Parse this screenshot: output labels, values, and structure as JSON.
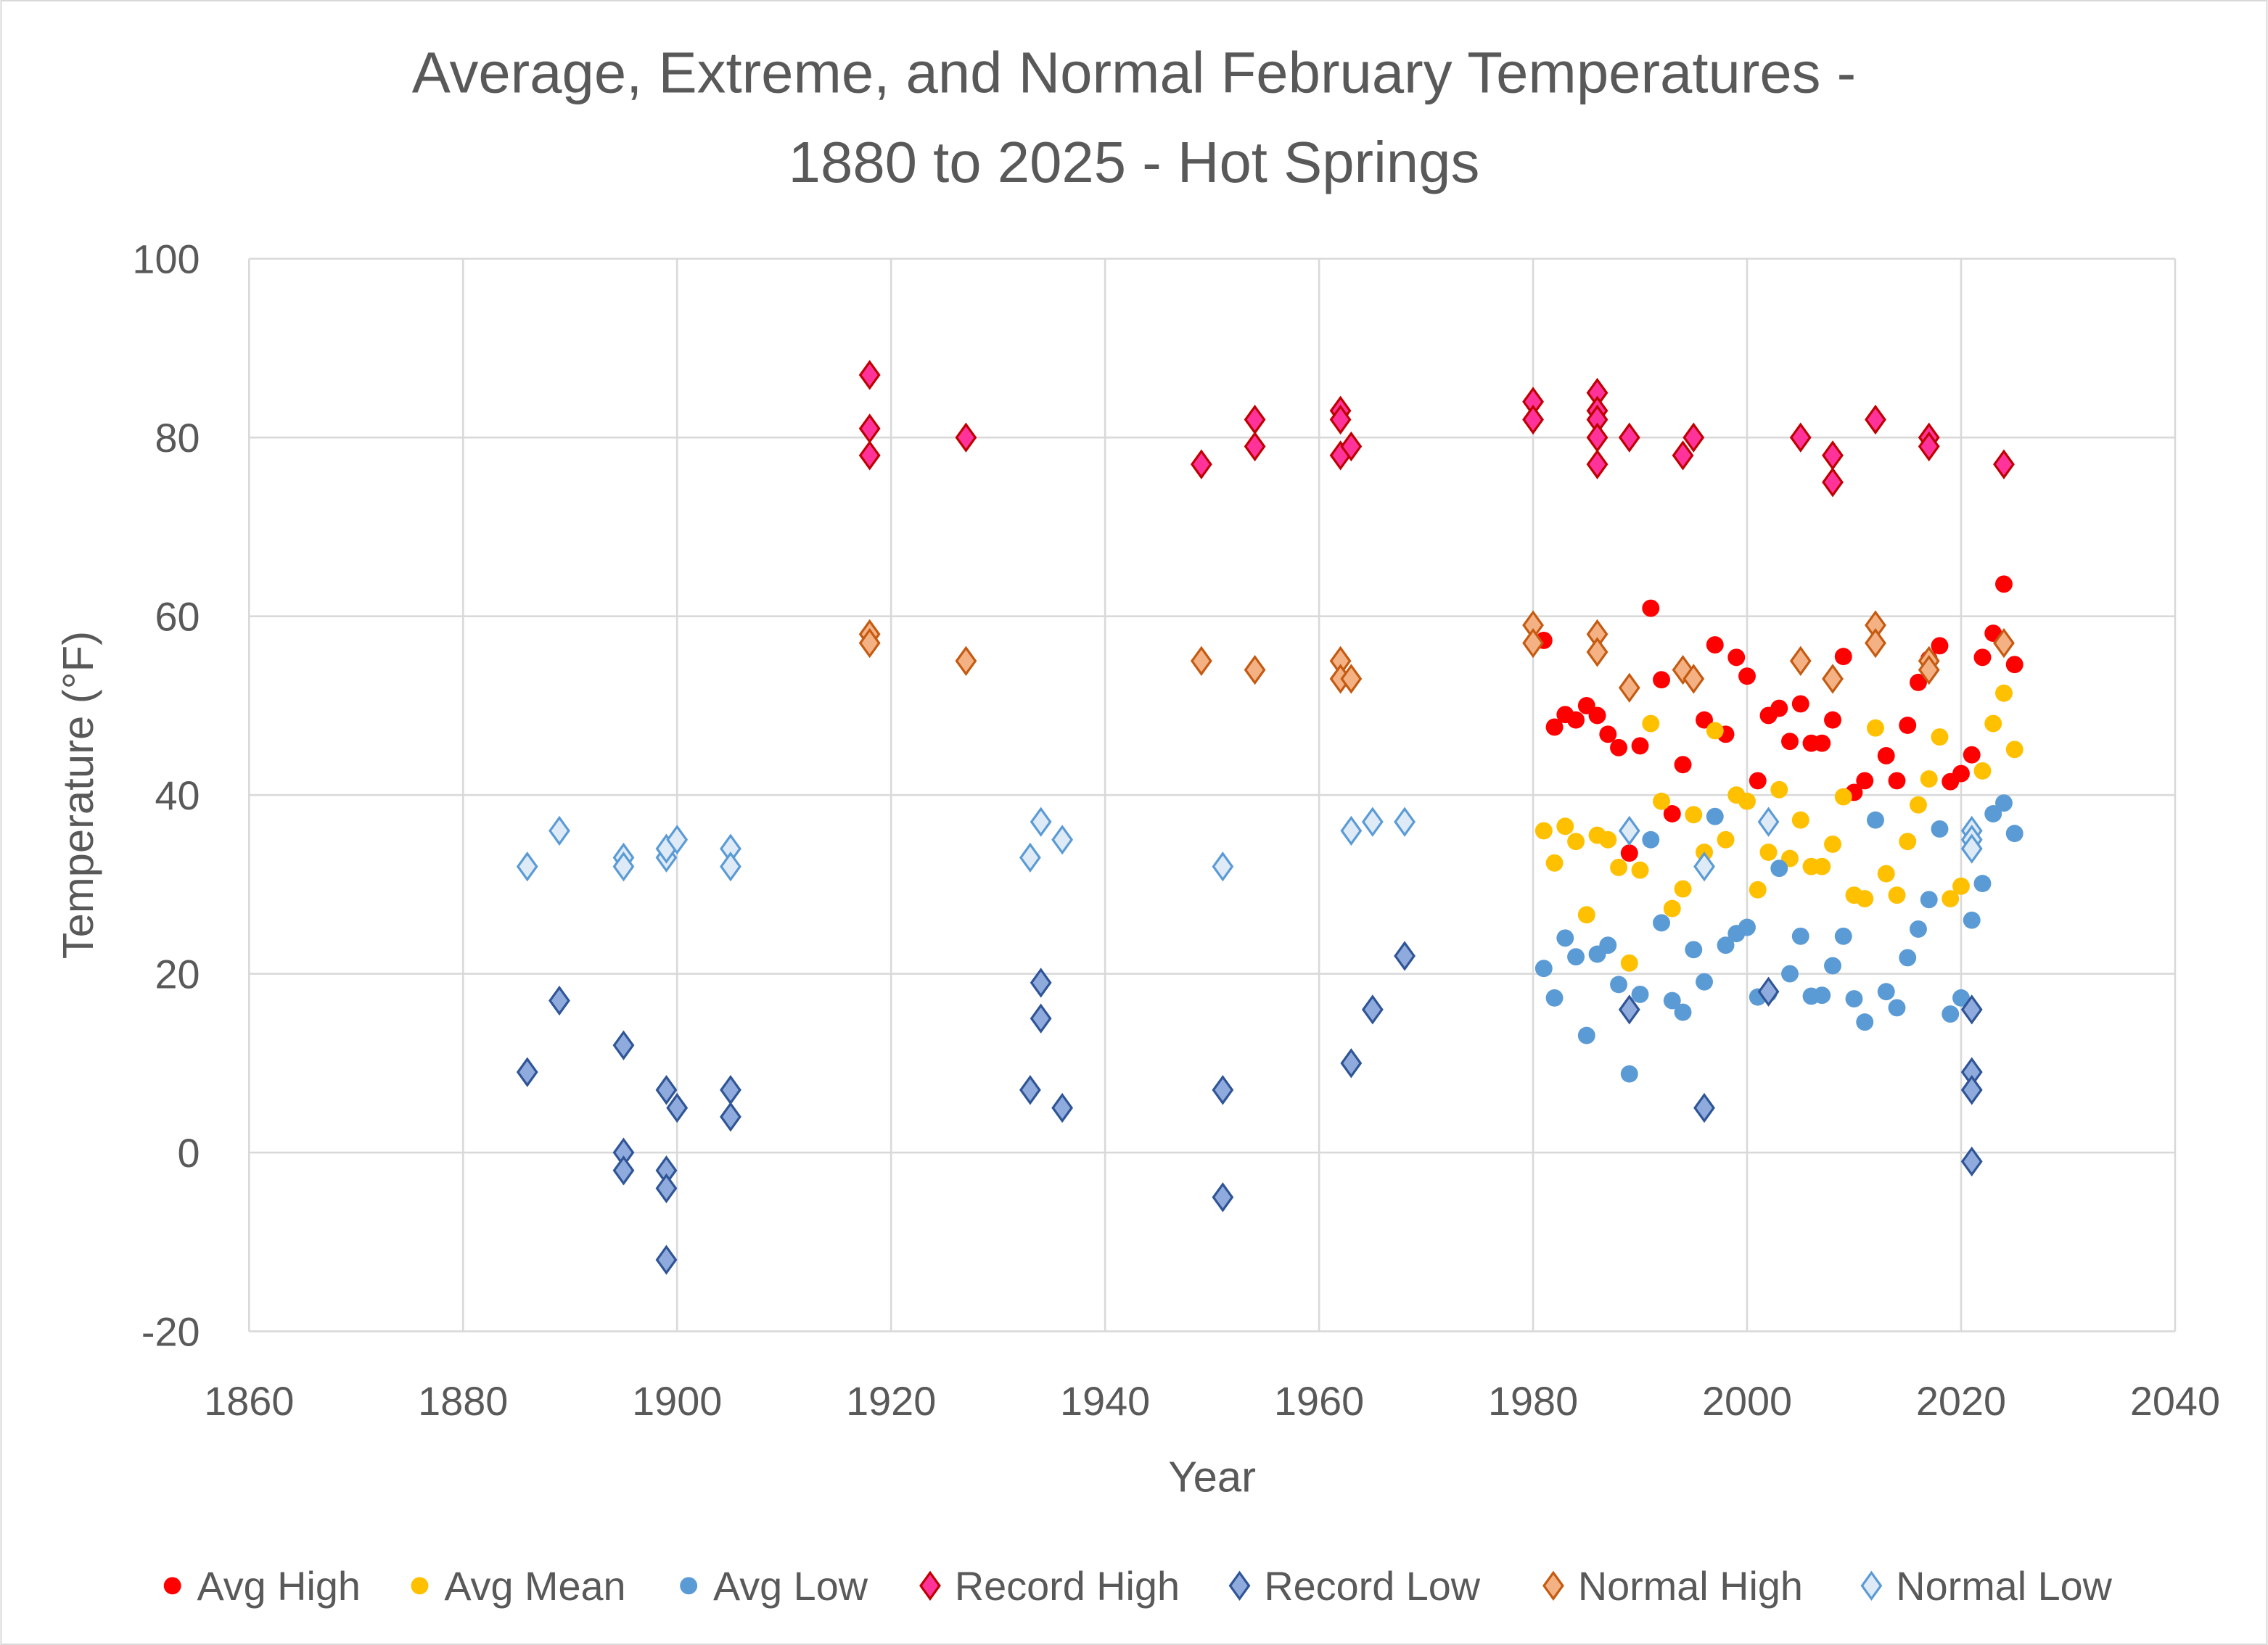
{
  "chart_data": {
    "type": "scatter",
    "title": [
      "Average, Extreme, and Normal February Temperatures -",
      "1880 to 2025 - Hot Springs"
    ],
    "xlabel": "Year",
    "ylabel": "Temperature (°F)",
    "xlim": [
      1860,
      2040
    ],
    "ylim": [
      -20,
      100
    ],
    "xticks": [
      1860,
      1880,
      1900,
      1920,
      1940,
      1960,
      1980,
      2000,
      2020,
      2040
    ],
    "yticks": [
      -20,
      0,
      20,
      40,
      60,
      80,
      100
    ],
    "grid": true,
    "legend": "bottom",
    "series": [
      {
        "name": "Avg High",
        "marker": "circle",
        "color": "#FF0000",
        "stroke": "#FF0000",
        "points": [
          [
            1981,
            57.3
          ],
          [
            1982,
            47.6
          ],
          [
            1983,
            49
          ],
          [
            1984,
            48.4
          ],
          [
            1985,
            50
          ],
          [
            1986,
            48.9
          ],
          [
            1987,
            46.8
          ],
          [
            1988,
            45.3
          ],
          [
            1989,
            33.5
          ],
          [
            1990,
            45.5
          ],
          [
            1991,
            60.9
          ],
          [
            1992,
            52.9
          ],
          [
            1993,
            37.9
          ],
          [
            1994,
            43.4
          ],
          [
            1996,
            48.4
          ],
          [
            1997,
            56.8
          ],
          [
            1998,
            46.8
          ],
          [
            1999,
            55.4
          ],
          [
            2000,
            53.3
          ],
          [
            2001,
            41.6
          ],
          [
            2002,
            48.9
          ],
          [
            2003,
            49.7
          ],
          [
            2004,
            46
          ],
          [
            2005,
            50.2
          ],
          [
            2006,
            45.8
          ],
          [
            2007,
            45.8
          ],
          [
            2008,
            48.4
          ],
          [
            2009,
            55.5
          ],
          [
            2010,
            40.3
          ],
          [
            2011,
            41.6
          ],
          [
            2013,
            44.4
          ],
          [
            2014,
            41.6
          ],
          [
            2015,
            47.8
          ],
          [
            2016,
            52.6
          ],
          [
            2017,
            55.2
          ],
          [
            2018,
            56.7
          ],
          [
            2019,
            41.5
          ],
          [
            2020,
            42.4
          ],
          [
            2021,
            44.5
          ],
          [
            2022,
            55.4
          ],
          [
            2023,
            58.1
          ],
          [
            2024,
            63.6
          ],
          [
            2025,
            54.6
          ]
        ]
      },
      {
        "name": "Avg Mean",
        "marker": "circle",
        "color": "#FFC000",
        "stroke": "#FFC000",
        "points": [
          [
            1981,
            36
          ],
          [
            1982,
            32.4
          ],
          [
            1983,
            36.5
          ],
          [
            1984,
            34.8
          ],
          [
            1985,
            26.6
          ],
          [
            1986,
            35.5
          ],
          [
            1987,
            35
          ],
          [
            1988,
            31.9
          ],
          [
            1989,
            21.2
          ],
          [
            1990,
            31.6
          ],
          [
            1991,
            48
          ],
          [
            1992,
            39.3
          ],
          [
            1993,
            27.3
          ],
          [
            1994,
            29.5
          ],
          [
            1995,
            37.8
          ],
          [
            1996,
            33.6
          ],
          [
            1997,
            47.2
          ],
          [
            1998,
            35
          ],
          [
            1999,
            40
          ],
          [
            2000,
            39.3
          ],
          [
            2001,
            29.4
          ],
          [
            2002,
            33.6
          ],
          [
            2003,
            40.6
          ],
          [
            2004,
            32.9
          ],
          [
            2005,
            37.2
          ],
          [
            2006,
            32
          ],
          [
            2007,
            32
          ],
          [
            2008,
            34.5
          ],
          [
            2009,
            39.8
          ],
          [
            2010,
            28.8
          ],
          [
            2011,
            28.4
          ],
          [
            2012,
            47.5
          ],
          [
            2013,
            31.2
          ],
          [
            2014,
            28.8
          ],
          [
            2015,
            34.8
          ],
          [
            2016,
            38.9
          ],
          [
            2017,
            41.8
          ],
          [
            2018,
            46.5
          ],
          [
            2019,
            28.4
          ],
          [
            2020,
            29.8
          ],
          [
            2022,
            42.7
          ],
          [
            2023,
            48
          ],
          [
            2024,
            51.4
          ],
          [
            2025,
            45.1
          ]
        ]
      },
      {
        "name": "Avg Low",
        "marker": "circle",
        "color": "#5B9BD5",
        "stroke": "#5B9BD5",
        "points": [
          [
            1981,
            20.6
          ],
          [
            1982,
            17.3
          ],
          [
            1983,
            24
          ],
          [
            1984,
            21.9
          ],
          [
            1985,
            13.1
          ],
          [
            1986,
            22.2
          ],
          [
            1987,
            23.2
          ],
          [
            1988,
            18.8
          ],
          [
            1989,
            8.8
          ],
          [
            1990,
            17.7
          ],
          [
            1991,
            35
          ],
          [
            1992,
            25.7
          ],
          [
            1993,
            17
          ],
          [
            1994,
            15.7
          ],
          [
            1995,
            22.7
          ],
          [
            1996,
            19.1
          ],
          [
            1997,
            37.6
          ],
          [
            1998,
            23.2
          ],
          [
            1999,
            24.5
          ],
          [
            2000,
            25.2
          ],
          [
            2001,
            17.4
          ],
          [
            2002,
            17.8
          ],
          [
            2003,
            31.8
          ],
          [
            2004,
            20
          ],
          [
            2005,
            24.2
          ],
          [
            2006,
            17.5
          ],
          [
            2007,
            17.6
          ],
          [
            2008,
            20.9
          ],
          [
            2009,
            24.2
          ],
          [
            2010,
            17.2
          ],
          [
            2011,
            14.6
          ],
          [
            2012,
            37.2
          ],
          [
            2013,
            18
          ],
          [
            2014,
            16.2
          ],
          [
            2015,
            21.8
          ],
          [
            2016,
            25
          ],
          [
            2017,
            28.3
          ],
          [
            2018,
            36.2
          ],
          [
            2019,
            15.5
          ],
          [
            2020,
            17.3
          ],
          [
            2021,
            26
          ],
          [
            2022,
            30.1
          ],
          [
            2023,
            37.9
          ],
          [
            2024,
            39.1
          ],
          [
            2025,
            35.7
          ]
        ]
      },
      {
        "name": "Record High",
        "marker": "diamond",
        "color": "#FF3399",
        "stroke": "#C00000",
        "points": [
          [
            1918,
            87
          ],
          [
            1918,
            81
          ],
          [
            1918,
            78
          ],
          [
            1927,
            80
          ],
          [
            1949,
            77
          ],
          [
            1954,
            82
          ],
          [
            1954,
            79
          ],
          [
            1962,
            83
          ],
          [
            1962,
            82
          ],
          [
            1962,
            78
          ],
          [
            1963,
            79
          ],
          [
            1980,
            84
          ],
          [
            1980,
            82
          ],
          [
            1986,
            85
          ],
          [
            1986,
            83
          ],
          [
            1986,
            82
          ],
          [
            1986,
            80
          ],
          [
            1986,
            77
          ],
          [
            1989,
            80
          ],
          [
            1994,
            78
          ],
          [
            1995,
            80
          ],
          [
            2005,
            80
          ],
          [
            2008,
            78
          ],
          [
            2008,
            75
          ],
          [
            2012,
            82
          ],
          [
            2017,
            80
          ],
          [
            2017,
            79
          ],
          [
            2024,
            77
          ]
        ]
      },
      {
        "name": "Record Low",
        "marker": "diamond",
        "color": "#8FAADC",
        "stroke": "#2F5597",
        "points": [
          [
            1886,
            9
          ],
          [
            1889,
            17
          ],
          [
            1895,
            12
          ],
          [
            1895,
            0
          ],
          [
            1895,
            -2
          ],
          [
            1899,
            7
          ],
          [
            1899,
            -2
          ],
          [
            1899,
            -4
          ],
          [
            1899,
            -12
          ],
          [
            1900,
            5
          ],
          [
            1905,
            7
          ],
          [
            1905,
            4
          ],
          [
            1933,
            7
          ],
          [
            1934,
            19
          ],
          [
            1934,
            15
          ],
          [
            1936,
            5
          ],
          [
            1951,
            7
          ],
          [
            1951,
            -5
          ],
          [
            1963,
            10
          ],
          [
            1965,
            16
          ],
          [
            1968,
            22
          ],
          [
            1989,
            16
          ],
          [
            1996,
            5
          ],
          [
            2002,
            18
          ],
          [
            2021,
            16
          ],
          [
            2021,
            9
          ],
          [
            2021,
            7
          ],
          [
            2021,
            -1
          ]
        ]
      },
      {
        "name": "Normal High",
        "marker": "diamond",
        "color": "#F4B183",
        "stroke": "#C55A11",
        "points": [
          [
            1918,
            58
          ],
          [
            1918,
            57
          ],
          [
            1927,
            55
          ],
          [
            1949,
            55
          ],
          [
            1954,
            54
          ],
          [
            1962,
            55
          ],
          [
            1962,
            53
          ],
          [
            1963,
            53
          ],
          [
            1980,
            59
          ],
          [
            1980,
            57
          ],
          [
            1986,
            58
          ],
          [
            1986,
            56
          ],
          [
            1989,
            52
          ],
          [
            1994,
            54
          ],
          [
            1995,
            53
          ],
          [
            2005,
            55
          ],
          [
            2008,
            53
          ],
          [
            2012,
            59
          ],
          [
            2012,
            57
          ],
          [
            2017,
            55
          ],
          [
            2017,
            54
          ],
          [
            2024,
            57
          ]
        ]
      },
      {
        "name": "Normal Low",
        "marker": "diamond",
        "color": "#DEEBF7",
        "stroke": "#5B9BD5",
        "points": [
          [
            1886,
            32
          ],
          [
            1889,
            36
          ],
          [
            1895,
            33
          ],
          [
            1895,
            32
          ],
          [
            1899,
            33
          ],
          [
            1899,
            34
          ],
          [
            1900,
            35
          ],
          [
            1905,
            34
          ],
          [
            1905,
            32
          ],
          [
            1933,
            33
          ],
          [
            1934,
            37
          ],
          [
            1936,
            35
          ],
          [
            1951,
            32
          ],
          [
            1963,
            36
          ],
          [
            1965,
            37
          ],
          [
            1968,
            37
          ],
          [
            1989,
            36
          ],
          [
            1996,
            32
          ],
          [
            2002,
            37
          ],
          [
            2021,
            36
          ],
          [
            2021,
            35
          ],
          [
            2021,
            34
          ]
        ]
      }
    ]
  }
}
